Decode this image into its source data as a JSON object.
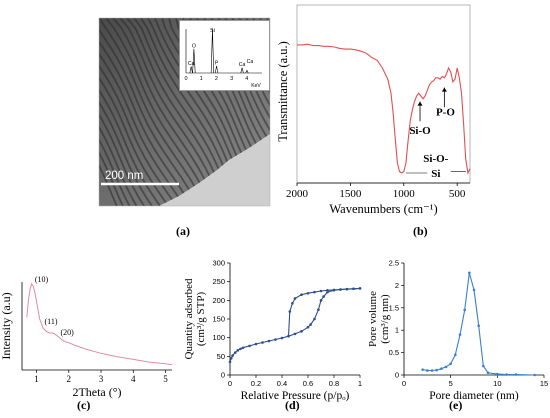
{
  "captions": {
    "a": "(a)",
    "b": "(b)",
    "c": "(c)",
    "d": "(d)",
    "e": "(e)"
  },
  "tem": {
    "scale_bar": "200 nm"
  },
  "eds": {
    "peaks": [
      {
        "label": "Ca",
        "x": 0.34,
        "h": 0.15
      },
      {
        "label": "O",
        "x": 0.52,
        "h": 0.55
      },
      {
        "label": "Si",
        "x": 1.74,
        "h": 1.0
      },
      {
        "label": "P",
        "x": 2.01,
        "h": 0.16
      },
      {
        "label": "Ca",
        "x": 3.69,
        "h": 0.12
      },
      {
        "label": "Ca",
        "x": 4.01,
        "h": 0.06
      }
    ],
    "peak_labels": [
      "Ca",
      "O",
      "Si",
      "P",
      "Ca",
      "Ca"
    ],
    "x_ticks": [
      "0",
      "1",
      "2",
      "3",
      "4"
    ],
    "x_unit": "KeV",
    "xlim": [
      0,
      5
    ]
  },
  "chart_data": [
    {
      "id": "ftir",
      "type": "line",
      "ylabel": "Transmittance (a.u.)",
      "xlabel": "Wavenumbers (cm⁻¹)",
      "x_ticks": [
        2000,
        1500,
        1000,
        500
      ],
      "xlim": [
        2000,
        380
      ],
      "ylim": [
        0,
        1
      ],
      "color": "#e05050",
      "x": [
        2000,
        1950,
        1900,
        1850,
        1800,
        1750,
        1700,
        1650,
        1600,
        1550,
        1500,
        1450,
        1400,
        1350,
        1300,
        1250,
        1200,
        1150,
        1120,
        1100,
        1080,
        1060,
        1040,
        1020,
        1000,
        980,
        960,
        940,
        920,
        900,
        880,
        860,
        840,
        820,
        800,
        780,
        760,
        740,
        720,
        700,
        680,
        660,
        640,
        620,
        600,
        580,
        560,
        540,
        520,
        500,
        480,
        460,
        440,
        420,
        400,
        380
      ],
      "y": [
        0.965,
        0.965,
        0.97,
        0.96,
        0.96,
        0.955,
        0.955,
        0.95,
        0.94,
        0.935,
        0.935,
        0.93,
        0.92,
        0.905,
        0.875,
        0.855,
        0.8,
        0.72,
        0.62,
        0.48,
        0.3,
        0.12,
        0.06,
        0.05,
        0.06,
        0.12,
        0.28,
        0.42,
        0.5,
        0.56,
        0.6,
        0.62,
        0.6,
        0.58,
        0.6,
        0.64,
        0.68,
        0.7,
        0.71,
        0.73,
        0.73,
        0.72,
        0.74,
        0.73,
        0.76,
        0.8,
        0.77,
        0.7,
        0.72,
        0.8,
        0.73,
        0.62,
        0.4,
        0.15,
        0.05,
        0.08
      ],
      "annotations": [
        "Si-O",
        "P-O",
        "Si-O-",
        "Si"
      ]
    },
    {
      "id": "saxs",
      "type": "line",
      "ylabel": "Intensity (a.u)",
      "xlabel": "2Theta (°)",
      "x_ticks": [
        1,
        2,
        3,
        4,
        5
      ],
      "xlim": [
        0.55,
        5.2
      ],
      "ylim": [
        0,
        1
      ],
      "color": "#e08aa8",
      "x": [
        0.7,
        0.75,
        0.8,
        0.85,
        0.9,
        0.95,
        1.0,
        1.05,
        1.1,
        1.2,
        1.3,
        1.4,
        1.5,
        1.6,
        1.7,
        1.8,
        1.9,
        2.0,
        2.2,
        2.5,
        3.0,
        3.5,
        4.0,
        4.5,
        5.0,
        5.2
      ],
      "y": [
        0.6,
        0.8,
        0.92,
        0.98,
        0.95,
        0.88,
        0.78,
        0.68,
        0.58,
        0.48,
        0.44,
        0.42,
        0.42,
        0.4,
        0.37,
        0.34,
        0.32,
        0.31,
        0.28,
        0.24,
        0.19,
        0.15,
        0.12,
        0.09,
        0.07,
        0.06
      ],
      "annotations": [
        "(10)",
        "(11)",
        "(20)"
      ]
    },
    {
      "id": "bet",
      "type": "line",
      "ylabel_line1": "Quantity adsorbed",
      "ylabel_line2": "(cm³/g STP)",
      "xlabel": "Relative Pressure (p/pₒ)",
      "x_ticks": [
        "0",
        "0.2",
        "0.4",
        "0.6",
        "0.8",
        "1"
      ],
      "y_ticks": [
        "0",
        "50",
        "100",
        "150",
        "200",
        "250",
        "300"
      ],
      "xlim": [
        0,
        1
      ],
      "ylim": [
        0,
        300
      ],
      "color": "#2e4f8e",
      "series": [
        {
          "name": "adsorption",
          "x": [
            0.0,
            0.01,
            0.02,
            0.04,
            0.06,
            0.08,
            0.1,
            0.15,
            0.2,
            0.25,
            0.3,
            0.35,
            0.4,
            0.45,
            0.5,
            0.55,
            0.6,
            0.62,
            0.65,
            0.68,
            0.7,
            0.72,
            0.75,
            0.8,
            0.85,
            0.9,
            0.95,
            1.0
          ],
          "y": [
            35,
            45,
            52,
            60,
            66,
            70,
            73,
            78,
            83,
            87,
            91,
            95,
            99,
            104,
            110,
            117,
            128,
            135,
            150,
            175,
            200,
            210,
            222,
            227,
            229,
            230,
            231,
            232
          ]
        },
        {
          "name": "desorption",
          "x": [
            1.0,
            0.95,
            0.9,
            0.85,
            0.8,
            0.75,
            0.7,
            0.65,
            0.6,
            0.55,
            0.5,
            0.48,
            0.46,
            0.45
          ],
          "y": [
            232,
            231,
            230,
            229,
            228,
            227,
            225,
            222,
            219,
            215,
            205,
            192,
            170,
            104
          ]
        }
      ]
    },
    {
      "id": "psd",
      "type": "line",
      "ylabel_line1": "Pore volume",
      "ylabel_line2": "(cm³/g nm)",
      "xlabel": "Pore diameter (nm)",
      "x_ticks": [
        "0",
        "5",
        "10",
        "15"
      ],
      "y_ticks": [
        "0",
        "0.5",
        "1",
        "1.5",
        "2",
        "2.5"
      ],
      "xlim": [
        0,
        15
      ],
      "ylim": [
        0,
        2.5
      ],
      "color": "#3a7fd0",
      "x": [
        2.0,
        2.5,
        3.0,
        3.5,
        4.0,
        4.5,
        5.0,
        5.5,
        6.0,
        6.5,
        7.0,
        7.5,
        8.0,
        8.5,
        9.0,
        10.0,
        11.0,
        12.0,
        14.0
      ],
      "y": [
        0.12,
        0.1,
        0.1,
        0.11,
        0.14,
        0.18,
        0.25,
        0.45,
        0.9,
        1.45,
        2.28,
        1.9,
        1.1,
        0.2,
        0.05,
        0.02,
        0.01,
        0.01,
        0.0
      ]
    }
  ]
}
